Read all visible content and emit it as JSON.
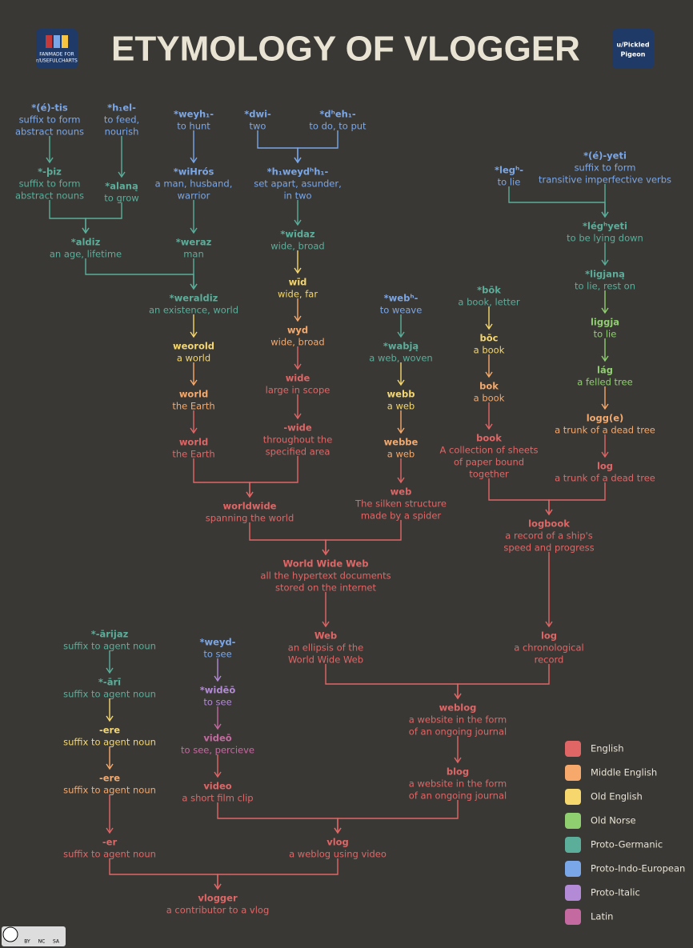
{
  "header": {
    "title": "ETYMOLOGY OF VLOGGER",
    "badge_left": [
      "FANMADE FOR",
      "r/USEFULCHARTS"
    ],
    "badge_right": [
      "u/Pickled",
      "Pigeon"
    ]
  },
  "nodes": [
    {
      "word": "*(é)-tis",
      "gloss": [
        "suffix to form",
        "abstract nouns"
      ],
      "color": "#7aa7e8"
    },
    {
      "word": "*h₁el-",
      "gloss": [
        "to feed,",
        "nourish"
      ],
      "color": "#7aa7e8"
    },
    {
      "word": "*weyh₁-",
      "gloss": [
        "to hunt"
      ],
      "color": "#7aa7e8"
    },
    {
      "word": "*dwi-",
      "gloss": [
        "two"
      ],
      "color": "#7aa7e8"
    },
    {
      "word": "*dʰeh₁-",
      "gloss": [
        "to do, to put"
      ],
      "color": "#7aa7e8"
    },
    {
      "word": "*-þiz",
      "gloss": [
        "suffix to form",
        "abstract nouns"
      ],
      "color": "#5aae9a"
    },
    {
      "word": "*alaną",
      "gloss": [
        "to grow"
      ],
      "color": "#5aae9a"
    },
    {
      "word": "*wiHrós",
      "gloss": [
        "a man, husband,",
        "warrior"
      ],
      "color": "#7aa7e8"
    },
    {
      "word": "*h₁weydʰh₁-",
      "gloss": [
        "set apart, asunder,",
        "in two"
      ],
      "color": "#7aa7e8"
    },
    {
      "word": "*legʰ-",
      "gloss": [
        "to lie"
      ],
      "color": "#7aa7e8"
    },
    {
      "word": "*(é)-yeti",
      "gloss": [
        "suffix to form",
        "transitive imperfective verbs"
      ],
      "color": "#7aa7e8"
    },
    {
      "word": "*aldiz",
      "gloss": [
        "an age, lifetime"
      ],
      "color": "#5aae9a"
    },
    {
      "word": "*weraz",
      "gloss": [
        "man"
      ],
      "color": "#5aae9a"
    },
    {
      "word": "*wīdaz",
      "gloss": [
        "wide, broad"
      ],
      "color": "#5aae9a"
    },
    {
      "word": "*légʰyeti",
      "gloss": [
        "to be lying down"
      ],
      "color": "#5aae9a"
    },
    {
      "word": "*weraldiz",
      "gloss": [
        "an existence, world"
      ],
      "color": "#5aae9a"
    },
    {
      "word": "wīd",
      "gloss": [
        "wide, far"
      ],
      "color": "#f5d76e"
    },
    {
      "word": "*webʰ-",
      "gloss": [
        "to weave"
      ],
      "color": "#7aa7e8"
    },
    {
      "word": "*bōk",
      "gloss": [
        "a book, letter"
      ],
      "color": "#5aae9a"
    },
    {
      "word": "*ligjaną",
      "gloss": [
        "to lie, rest on"
      ],
      "color": "#5aae9a"
    },
    {
      "word": "weorold",
      "gloss": [
        "a world"
      ],
      "color": "#f5d76e"
    },
    {
      "word": "wyd",
      "gloss": [
        "wide, broad"
      ],
      "color": "#f6a96b"
    },
    {
      "word": "*wabją",
      "gloss": [
        "a web, woven"
      ],
      "color": "#5aae9a"
    },
    {
      "word": "bōc",
      "gloss": [
        "a book"
      ],
      "color": "#f5d76e"
    },
    {
      "word": "liggja",
      "gloss": [
        "to lie"
      ],
      "color": "#8fcf6f"
    },
    {
      "word": "world",
      "gloss": [
        "the Earth"
      ],
      "color": "#f6a96b"
    },
    {
      "word": "wide",
      "gloss": [
        "large in scope"
      ],
      "color": "#e06666"
    },
    {
      "word": "webb",
      "gloss": [
        "a web"
      ],
      "color": "#f5d76e"
    },
    {
      "word": "bok",
      "gloss": [
        "a book"
      ],
      "color": "#f6a96b"
    },
    {
      "word": "lág",
      "gloss": [
        "a felled tree"
      ],
      "color": "#8fcf6f"
    },
    {
      "word": "world",
      "gloss": [
        "the Earth"
      ],
      "color": "#e06666"
    },
    {
      "word": "-wide",
      "gloss": [
        "throughout the",
        "specified area"
      ],
      "color": "#e06666"
    },
    {
      "word": "webbe",
      "gloss": [
        "a web"
      ],
      "color": "#f6a96b"
    },
    {
      "word": "book",
      "gloss": [
        "A collection of sheets",
        "of paper bound",
        "together"
      ],
      "color": "#e06666"
    },
    {
      "word": "logg(e)",
      "gloss": [
        "a trunk of a dead tree"
      ],
      "color": "#f6a96b"
    },
    {
      "word": "log",
      "gloss": [
        "a trunk of a dead tree"
      ],
      "color": "#e06666"
    },
    {
      "word": "web",
      "gloss": [
        "The silken structure",
        "made by a spider"
      ],
      "color": "#e06666"
    },
    {
      "word": "worldwide",
      "gloss": [
        "spanning the world"
      ],
      "color": "#e06666"
    },
    {
      "word": "logbook",
      "gloss": [
        "a record of a ship's",
        "speed and progress"
      ],
      "color": "#e06666"
    },
    {
      "word": "World Wide Web",
      "gloss": [
        "all the hypertext documents",
        "stored on the internet"
      ],
      "color": "#e06666"
    },
    {
      "word": "*-ārijaz",
      "gloss": [
        "suffix to agent noun"
      ],
      "color": "#5aae9a"
    },
    {
      "word": "*weyd-",
      "gloss": [
        "to see"
      ],
      "color": "#7aa7e8"
    },
    {
      "word": "Web",
      "gloss": [
        "an ellipsis of the",
        "World Wide Web"
      ],
      "color": "#e06666"
    },
    {
      "word": "log",
      "gloss": [
        "a chronological",
        "record"
      ],
      "color": "#e06666"
    },
    {
      "word": "*-ārī",
      "gloss": [
        "suffix to agent noun"
      ],
      "color": "#5aae9a"
    },
    {
      "word": "*widēō",
      "gloss": [
        "to see"
      ],
      "color": "#b38ad6"
    },
    {
      "word": "weblog",
      "gloss": [
        "a website in the form",
        "of an ongoing journal"
      ],
      "color": "#e06666"
    },
    {
      "word": "-ere",
      "gloss": [
        "suffix to agent noun"
      ],
      "color": "#f5d76e"
    },
    {
      "word": "videō",
      "gloss": [
        "to see, percieve"
      ],
      "color": "#c46aa0"
    },
    {
      "word": "-ere",
      "gloss": [
        "suffix to agent noun"
      ],
      "color": "#f6a96b"
    },
    {
      "word": "video",
      "gloss": [
        "a short film clip"
      ],
      "color": "#e06666"
    },
    {
      "word": "blog",
      "gloss": [
        "a website in the form",
        "of an ongoing journal"
      ],
      "color": "#e06666"
    },
    {
      "word": "-er",
      "gloss": [
        "suffix to agent noun"
      ],
      "color": "#e06666"
    },
    {
      "word": "vlog",
      "gloss": [
        "a weblog using video"
      ],
      "color": "#e06666"
    },
    {
      "word": "vlogger",
      "gloss": [
        "a contributor to a vlog"
      ],
      "color": "#e06666"
    }
  ],
  "legend": [
    {
      "label": "English",
      "color": "#e06666"
    },
    {
      "label": "Middle English",
      "color": "#f6a96b"
    },
    {
      "label": "Old English",
      "color": "#f5d76e"
    },
    {
      "label": "Old Norse",
      "color": "#8fcf6f"
    },
    {
      "label": "Proto-Germanic",
      "color": "#5aae9a"
    },
    {
      "label": "Proto-Indo-European",
      "color": "#7aa7e8"
    },
    {
      "label": "Proto-Italic",
      "color": "#b38ad6"
    },
    {
      "label": "Latin",
      "color": "#c46aa0"
    }
  ],
  "license": [
    "BY",
    "NC",
    "SA"
  ]
}
